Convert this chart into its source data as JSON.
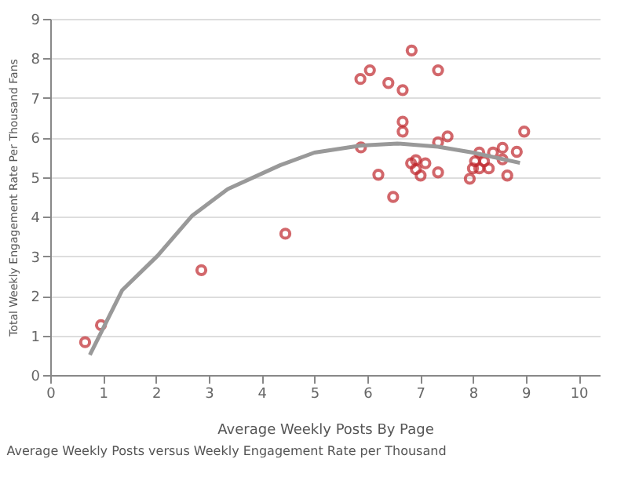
{
  "chart_data": {
    "type": "scatter",
    "xlabel": "Average Weekly Posts By Page",
    "ylabel": "Total Weekly Engagement Rate Per Thousand Fans",
    "annotations": [
      "Average Weekly Posts versus Weekly Engagement Rate per Thousand"
    ],
    "xlim": [
      0,
      10.4
    ],
    "xticks": [
      0,
      1,
      2,
      3,
      4,
      5,
      6,
      7,
      8,
      9,
      10
    ],
    "ylim": [
      0,
      9
    ],
    "yticks": [
      0,
      1,
      2,
      3,
      4,
      5,
      6,
      7,
      8,
      9
    ],
    "grid": "y",
    "series": [
      {
        "color": "#c0282d",
        "x": [
          0.66,
          0.96,
          2.86,
          4.45,
          5.87,
          6.05,
          6.84,
          6.4,
          6.67,
          7.34,
          6.67,
          6.67,
          5.88,
          6.21,
          6.49,
          7.34,
          7.52,
          6.83,
          6.92,
          7.1,
          6.92,
          7.01,
          7.34,
          7.94,
          8.0,
          8.12,
          8.04,
          8.21,
          8.12,
          8.3,
          8.38,
          8.56,
          8.56,
          8.65,
          8.83,
          8.97
        ],
        "values": [
          0.83,
          1.26,
          2.65,
          3.57,
          7.48,
          7.7,
          8.2,
          7.38,
          7.2,
          7.7,
          6.4,
          6.15,
          5.75,
          5.06,
          4.5,
          5.88,
          6.03,
          5.35,
          5.43,
          5.35,
          5.2,
          5.04,
          5.12,
          4.96,
          5.22,
          5.62,
          5.4,
          5.4,
          5.22,
          5.22,
          5.62,
          5.74,
          5.45,
          5.04,
          5.64,
          6.15
        ]
      },
      {
        "type": "line",
        "color": "#999999",
        "marker": "none",
        "x": [
          0.75,
          1.36,
          2.03,
          2.69,
          3.36,
          4.35,
          5.0,
          5.88,
          6.57,
          7.34,
          8.0,
          8.89
        ],
        "values": [
          0.51,
          2.14,
          3.01,
          4.03,
          4.7,
          5.3,
          5.62,
          5.8,
          5.85,
          5.77,
          5.62,
          5.36
        ]
      }
    ]
  }
}
